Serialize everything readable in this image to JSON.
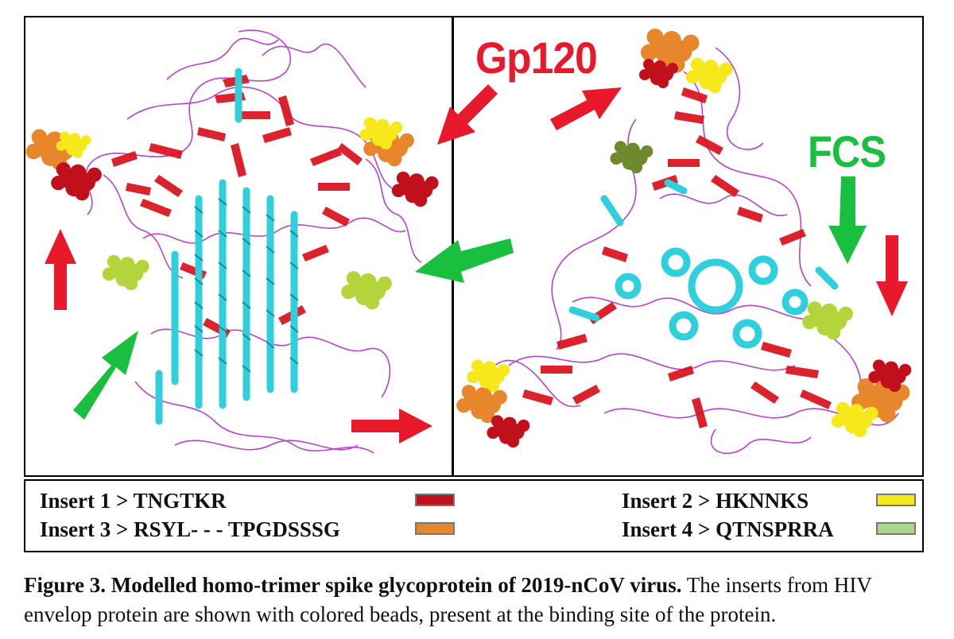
{
  "callouts": {
    "gp120": "Gp120",
    "fcs": "FCS"
  },
  "legend": [
    {
      "label": "Insert 1 > TNGTKR",
      "color": "#c0101c"
    },
    {
      "label": "Insert 2 >  HKNNKS",
      "color": "#f7e81c"
    },
    {
      "label": "Insert  3 >  RSYL- - - TPGDSSSG",
      "color": "#e8862c"
    },
    {
      "label": "Insert 4 > QTNSPRRA",
      "color": "#a8d88a"
    }
  ],
  "caption": {
    "bold": "Figure 3. Modelled homo-trimer spike glycoprotein of 2019-nCoV virus.",
    "rest": " The inserts from HIV envelop protein are shown with colored beads, present at the binding site of the protein."
  },
  "colors": {
    "red_arrow": "#e8192a",
    "green_arrow": "#19c040",
    "helix": "#2fcfdc",
    "sheet": "#d8101c",
    "coil": "#b030c0"
  },
  "icons": [
    "protein-side-view-image",
    "protein-top-view-image",
    "arrow-icon"
  ]
}
